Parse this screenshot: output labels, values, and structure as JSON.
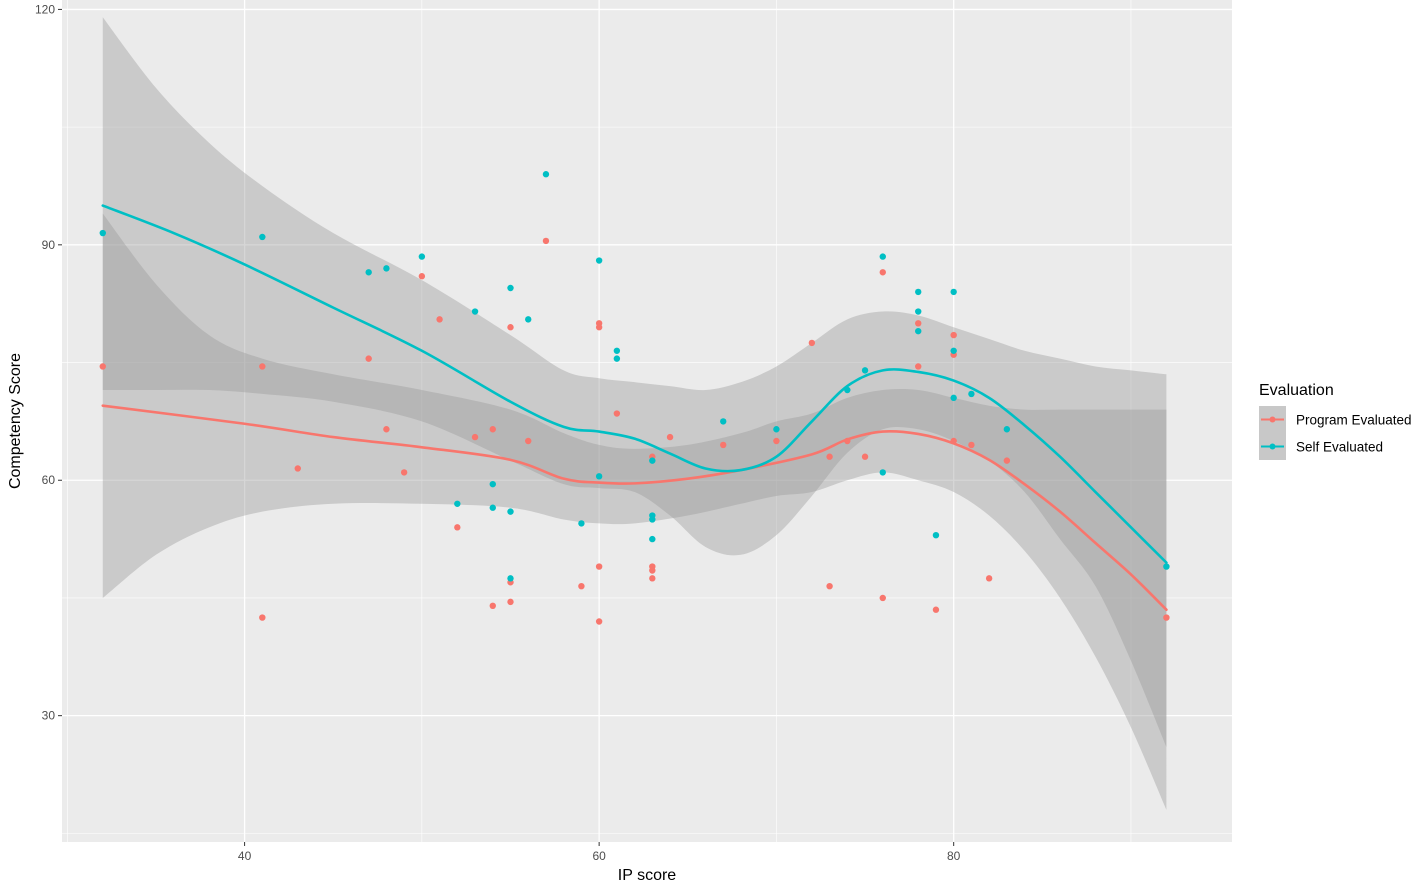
{
  "chart_data": {
    "type": "scatter",
    "xlabel": "IP score",
    "ylabel": "Competency Score",
    "xlim": [
      29.7,
      95.7
    ],
    "ylim": [
      13.9,
      121.2
    ],
    "x_ticks": [
      40,
      60,
      80
    ],
    "y_ticks": [
      30,
      60,
      90,
      120
    ],
    "grid": true,
    "legend": {
      "title": "Evaluation",
      "placement": "right"
    },
    "series": [
      {
        "name": "Program Evaluated",
        "color": "#F8766D",
        "points": [
          [
            32,
            74.5
          ],
          [
            41,
            74.5
          ],
          [
            41,
            42.5
          ],
          [
            43,
            61.5
          ],
          [
            47,
            75.5
          ],
          [
            48,
            66.5
          ],
          [
            49,
            61
          ],
          [
            50,
            86
          ],
          [
            51,
            80.5
          ],
          [
            52,
            54
          ],
          [
            53,
            65.5
          ],
          [
            54,
            66.5
          ],
          [
            54,
            44
          ],
          [
            55,
            79.5
          ],
          [
            55,
            47
          ],
          [
            55,
            44.5
          ],
          [
            56,
            65
          ],
          [
            57,
            90.5
          ],
          [
            59,
            46.5
          ],
          [
            60,
            80
          ],
          [
            60,
            79.5
          ],
          [
            60,
            49
          ],
          [
            60,
            42
          ],
          [
            61,
            68.5
          ],
          [
            63,
            63
          ],
          [
            63,
            49
          ],
          [
            63,
            48.5
          ],
          [
            63,
            47.5
          ],
          [
            64,
            65.5
          ],
          [
            67,
            64.5
          ],
          [
            70,
            65
          ],
          [
            72,
            77.5
          ],
          [
            73,
            63
          ],
          [
            73,
            46.5
          ],
          [
            74,
            65
          ],
          [
            75,
            63
          ],
          [
            76,
            86.5
          ],
          [
            76,
            45
          ],
          [
            78,
            80
          ],
          [
            78,
            74.5
          ],
          [
            79,
            43.5
          ],
          [
            80,
            78.5
          ],
          [
            80,
            76
          ],
          [
            80,
            65
          ],
          [
            81,
            64.5
          ],
          [
            82,
            47.5
          ],
          [
            83,
            62.5
          ],
          [
            92,
            42.5
          ]
        ],
        "smooth": [
          [
            32,
            69.5
          ],
          [
            40,
            67.2
          ],
          [
            45,
            65.5
          ],
          [
            50,
            64.2
          ],
          [
            55,
            62.6
          ],
          [
            58,
            60.2
          ],
          [
            60,
            59.7
          ],
          [
            62,
            59.6
          ],
          [
            65,
            60.2
          ],
          [
            68,
            61.3
          ],
          [
            72,
            63.3
          ],
          [
            74,
            65.2
          ],
          [
            76,
            66.2
          ],
          [
            78,
            65.9
          ],
          [
            80,
            64.7
          ],
          [
            82,
            62.6
          ],
          [
            84,
            59.5
          ],
          [
            86,
            56
          ],
          [
            88,
            52
          ],
          [
            90,
            48
          ],
          [
            92,
            43.5
          ]
        ],
        "ci_upper": [
          [
            32,
            94
          ],
          [
            35,
            85
          ],
          [
            38,
            78.5
          ],
          [
            41,
            75.5
          ],
          [
            45,
            73.5
          ],
          [
            50,
            71.5
          ],
          [
            55,
            69
          ],
          [
            58,
            66
          ],
          [
            60,
            64.5
          ],
          [
            62,
            64
          ],
          [
            65,
            64.5
          ],
          [
            68,
            66
          ],
          [
            70,
            67.5
          ],
          [
            72,
            68.5
          ],
          [
            74,
            70.5
          ],
          [
            76,
            71.5
          ],
          [
            78,
            71.5
          ],
          [
            80,
            70.5
          ],
          [
            82,
            69.5
          ],
          [
            84,
            69
          ],
          [
            86,
            69
          ],
          [
            88,
            69
          ],
          [
            90,
            69
          ],
          [
            92,
            69
          ]
        ],
        "ci_lower": [
          [
            32,
            45
          ],
          [
            35,
            50.5
          ],
          [
            38,
            54
          ],
          [
            41,
            56
          ],
          [
            45,
            57
          ],
          [
            50,
            57
          ],
          [
            55,
            56.5
          ],
          [
            58,
            55
          ],
          [
            60,
            54.5
          ],
          [
            62,
            54.5
          ],
          [
            65,
            55.5
          ],
          [
            68,
            57
          ],
          [
            70,
            58
          ],
          [
            72,
            58.5
          ],
          [
            74,
            60
          ],
          [
            76,
            61
          ],
          [
            78,
            60
          ],
          [
            80,
            58.5
          ],
          [
            82,
            55.5
          ],
          [
            84,
            51
          ],
          [
            86,
            45
          ],
          [
            88,
            37.5
          ],
          [
            90,
            28.5
          ],
          [
            92,
            18
          ]
        ]
      },
      {
        "name": "Self Evaluated",
        "color": "#00BFC4",
        "points": [
          [
            32,
            91.5
          ],
          [
            41,
            91
          ],
          [
            47,
            86.5
          ],
          [
            48,
            87
          ],
          [
            50,
            88.5
          ],
          [
            52,
            57
          ],
          [
            53,
            81.5
          ],
          [
            54,
            59.5
          ],
          [
            54,
            56.5
          ],
          [
            55,
            84.5
          ],
          [
            55,
            56
          ],
          [
            55,
            47.5
          ],
          [
            56,
            80.5
          ],
          [
            57,
            99
          ],
          [
            59,
            54.5
          ],
          [
            60,
            88
          ],
          [
            60,
            60.5
          ],
          [
            61,
            76.5
          ],
          [
            61,
            75.5
          ],
          [
            63,
            62.5
          ],
          [
            63,
            55.5
          ],
          [
            63,
            55
          ],
          [
            63,
            52.5
          ],
          [
            67,
            67.5
          ],
          [
            70,
            66.5
          ],
          [
            74,
            71.5
          ],
          [
            75,
            74
          ],
          [
            76,
            88.5
          ],
          [
            76,
            61
          ],
          [
            78,
            84
          ],
          [
            78,
            81.5
          ],
          [
            78,
            79
          ],
          [
            79,
            53
          ],
          [
            80,
            84
          ],
          [
            80,
            76.5
          ],
          [
            80,
            70.5
          ],
          [
            81,
            71
          ],
          [
            83,
            66.5
          ],
          [
            92,
            49
          ]
        ],
        "smooth": [
          [
            32,
            95
          ],
          [
            36,
            91.5
          ],
          [
            40,
            87.5
          ],
          [
            45,
            82
          ],
          [
            50,
            76.5
          ],
          [
            55,
            70
          ],
          [
            58,
            66.8
          ],
          [
            60,
            66.2
          ],
          [
            62,
            65.3
          ],
          [
            64,
            63.4
          ],
          [
            66,
            61.5
          ],
          [
            68,
            61.3
          ],
          [
            70,
            63
          ],
          [
            72,
            67.5
          ],
          [
            74,
            72
          ],
          [
            76,
            74
          ],
          [
            78,
            73.8
          ],
          [
            80,
            72.7
          ],
          [
            82,
            70.5
          ],
          [
            84,
            67
          ],
          [
            86,
            63
          ],
          [
            88,
            58.5
          ],
          [
            90,
            54
          ],
          [
            92,
            49.5
          ]
        ],
        "ci_upper": [
          [
            32,
            119
          ],
          [
            35,
            110
          ],
          [
            38,
            103
          ],
          [
            41,
            97.5
          ],
          [
            45,
            91.5
          ],
          [
            50,
            85.5
          ],
          [
            55,
            78.5
          ],
          [
            58,
            74
          ],
          [
            60,
            73
          ],
          [
            62,
            72.5
          ],
          [
            64,
            72
          ],
          [
            66,
            71.5
          ],
          [
            68,
            72.5
          ],
          [
            70,
            74.5
          ],
          [
            72,
            77.5
          ],
          [
            74,
            80.5
          ],
          [
            76,
            81.5
          ],
          [
            78,
            81
          ],
          [
            80,
            79.5
          ],
          [
            82,
            78
          ],
          [
            84,
            76.5
          ],
          [
            86,
            75.5
          ],
          [
            88,
            74.5
          ],
          [
            90,
            74
          ],
          [
            92,
            73.5
          ]
        ],
        "ci_lower": [
          [
            32,
            71.5
          ],
          [
            35,
            71.5
          ],
          [
            38,
            71.5
          ],
          [
            41,
            71
          ],
          [
            45,
            70
          ],
          [
            50,
            67.5
          ],
          [
            55,
            62.5
          ],
          [
            58,
            59.5
          ],
          [
            60,
            59
          ],
          [
            62,
            58.5
          ],
          [
            64,
            55.5
          ],
          [
            66,
            51.5
          ],
          [
            68,
            50.5
          ],
          [
            70,
            53
          ],
          [
            72,
            58
          ],
          [
            74,
            63.5
          ],
          [
            76,
            66.5
          ],
          [
            78,
            66.5
          ],
          [
            80,
            65
          ],
          [
            82,
            62.5
          ],
          [
            84,
            58.5
          ],
          [
            86,
            52.5
          ],
          [
            88,
            46.5
          ],
          [
            90,
            37
          ],
          [
            92,
            26
          ]
        ]
      }
    ]
  }
}
